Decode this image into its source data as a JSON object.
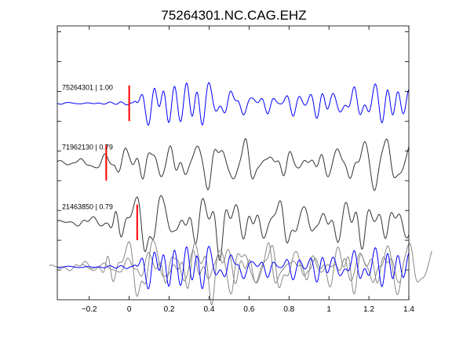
{
  "chart_data": {
    "type": "line",
    "title": "75264301.NC.CAG.EHZ",
    "xlabel": "",
    "ylabel": "",
    "xlim": [
      -0.36,
      1.4
    ],
    "ylim": [
      0,
      4.6
    ],
    "grid": false,
    "x_ticks": [
      {
        "value": -0.2,
        "label": "−0.2"
      },
      {
        "value": 0,
        "label": "0"
      },
      {
        "value": 0.2,
        "label": "0.2"
      },
      {
        "value": 0.4,
        "label": "0.4"
      },
      {
        "value": 0.6,
        "label": "0.6"
      },
      {
        "value": 0.8,
        "label": "0.8"
      },
      {
        "value": 1,
        "label": "1"
      },
      {
        "value": 1.2,
        "label": "1.2"
      },
      {
        "value": 1.4,
        "label": "1.4"
      }
    ],
    "traces": [
      {
        "name": "75264301 | 1.00",
        "color": "#0000ff",
        "pick_time": 0.0,
        "amplitude": 0.45,
        "onset": 0.02,
        "offset": 3.3,
        "seed": 7,
        "pre_level": 0.04
      },
      {
        "name": "71962130 | 0.79",
        "color": "#333333",
        "pick_time": -0.115,
        "amplitude": 0.48,
        "onset": -0.07,
        "offset": 2.3,
        "seed": 13,
        "pre_level": 0.22
      },
      {
        "name": "21463850 | 0.79",
        "color": "#333333",
        "pick_time": 0.04,
        "amplitude": 0.5,
        "onset": -0.12,
        "offset": 1.3,
        "seed": 29,
        "pre_level": 0.1
      }
    ],
    "overlay": {
      "offset": 0.55,
      "colors": [
        "#888888",
        "#888888",
        "#0000ff"
      ]
    },
    "pick_color": "#ff0000"
  }
}
